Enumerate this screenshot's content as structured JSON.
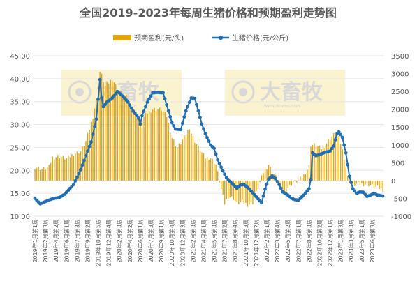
{
  "chart_data": {
    "type": "bar+line",
    "title": "全国2019-2023年每周生猪价格和预期盈利走势图",
    "legend": {
      "placement": "top-center",
      "bar_label": "预期盈利(元/头)",
      "line_label": "生猪价格(元/公斤)"
    },
    "colors": {
      "bar": "#e5a50f",
      "line": "#1f6fb5",
      "marker": "#1f6fb5",
      "grid": "#e6e6e6",
      "watermark_bg": "#fbf2d0"
    },
    "watermark": {
      "brand": "大畜牧",
      "url": "www.dxumu.com",
      "count": 2
    },
    "left_axis": {
      "label": "生猪价格",
      "min": 10,
      "max": 45,
      "step": 5,
      "ticks": [
        "10.00",
        "15.00",
        "20.00",
        "25.00",
        "30.00",
        "35.00",
        "40.00",
        "45.00"
      ]
    },
    "right_axis": {
      "label": "预期盈利",
      "min": -1000,
      "max": 3500,
      "step": 500,
      "ticks": [
        "-1000",
        "-500",
        "0",
        "500",
        "1000",
        "1500",
        "2000",
        "2500",
        "3000",
        "3500"
      ]
    },
    "x_tick_labels": [
      "2019年1月第1周",
      "2019年2月第3周",
      "2019年4月第2周",
      "2019年6月第1周",
      "2019年7月第3周",
      "2019年9月第2周",
      "2019年10月第5周",
      "2019年12月第4周",
      "2020年2月第3周",
      "2020年4月第2周",
      "2020年6月第1周",
      "2020年7月第3周",
      "2020年9月第1周",
      "2020年10月第4周",
      "2020年12月第3周",
      "2021年2月第3周",
      "2021年4月第1周",
      "2021年5月第3周",
      "2021年7月第2周",
      "2021年8月第4周",
      "2021年10月第3周",
      "2021年12月第2周",
      "2022年2月第1周",
      "2022年3月第4周",
      "2022年5月第2周",
      "2022年7月第1周",
      "2022年8月第3周",
      "2022年10月第2周",
      "2022年12月第1周",
      "2023年1月第3周",
      "2023年3月第3周",
      "2023年5月第1周",
      "2023年6月第3周"
    ],
    "price_keypoints": [
      [
        0,
        13.9
      ],
      [
        3,
        12.7
      ],
      [
        6,
        13.2
      ],
      [
        10,
        13.8
      ],
      [
        14,
        14.1
      ],
      [
        17,
        14.8
      ],
      [
        22,
        16.9
      ],
      [
        26,
        20.1
      ],
      [
        29,
        23.2
      ],
      [
        32,
        26.2
      ],
      [
        35,
        31.2
      ],
      [
        37,
        39.8
      ],
      [
        38,
        35.8
      ],
      [
        39,
        33.9
      ],
      [
        41,
        34.9
      ],
      [
        44,
        35.8
      ],
      [
        47,
        37.2
      ],
      [
        50,
        36.2
      ],
      [
        53,
        34.9
      ],
      [
        56,
        32.9
      ],
      [
        59,
        31.4
      ],
      [
        60,
        30.1
      ],
      [
        61,
        31.9
      ],
      [
        64,
        34.9
      ],
      [
        67,
        36.9
      ],
      [
        70,
        37.0
      ],
      [
        73,
        36.9
      ],
      [
        76,
        33.0
      ],
      [
        78,
        30.4
      ],
      [
        80,
        29.0
      ],
      [
        83,
        28.9
      ],
      [
        86,
        33.0
      ],
      [
        89,
        35.8
      ],
      [
        91,
        35.7
      ],
      [
        93,
        33.0
      ],
      [
        95,
        30.1
      ],
      [
        97,
        28.0
      ],
      [
        100,
        25.5
      ],
      [
        102,
        24.8
      ],
      [
        104,
        22.3
      ],
      [
        107,
        19.9
      ],
      [
        109,
        18.4
      ],
      [
        112,
        17.2
      ],
      [
        115,
        16.1
      ],
      [
        117,
        16.8
      ],
      [
        119,
        16.9
      ],
      [
        121,
        16.3
      ],
      [
        124,
        15.1
      ],
      [
        127,
        13.8
      ],
      [
        129,
        12.9
      ],
      [
        131,
        15.9
      ],
      [
        133,
        18.1
      ],
      [
        135,
        18.8
      ],
      [
        137,
        18.2
      ],
      [
        139,
        16.9
      ],
      [
        141,
        15.3
      ],
      [
        144,
        14.6
      ],
      [
        146,
        13.9
      ],
      [
        148,
        13.6
      ],
      [
        150,
        13.5
      ],
      [
        153,
        14.6
      ],
      [
        156,
        16.0
      ],
      [
        157,
        18.0
      ],
      [
        158,
        23.8
      ],
      [
        160,
        23.2
      ],
      [
        163,
        23.6
      ],
      [
        165,
        23.9
      ],
      [
        168,
        24.2
      ],
      [
        170,
        25.3
      ],
      [
        172,
        28.0
      ],
      [
        173,
        28.4
      ],
      [
        175,
        27.2
      ],
      [
        177,
        23.8
      ],
      [
        179,
        18.7
      ],
      [
        181,
        16.0
      ],
      [
        183,
        15.0
      ],
      [
        185,
        15.3
      ],
      [
        187,
        15.2
      ],
      [
        189,
        14.3
      ],
      [
        191,
        14.6
      ],
      [
        193,
        15.0
      ],
      [
        195,
        14.6
      ],
      [
        198,
        14.4
      ]
    ],
    "profit_keypoints": [
      [
        0,
        380
      ],
      [
        5,
        320
      ],
      [
        8,
        380
      ],
      [
        10,
        650
      ],
      [
        14,
        680
      ],
      [
        18,
        610
      ],
      [
        22,
        750
      ],
      [
        26,
        820
      ],
      [
        29,
        1100
      ],
      [
        33,
        1800
      ],
      [
        36,
        2500
      ],
      [
        37,
        3050
      ],
      [
        38,
        2950
      ],
      [
        40,
        2650
      ],
      [
        44,
        2850
      ],
      [
        48,
        2500
      ],
      [
        52,
        2350
      ],
      [
        56,
        1950
      ],
      [
        60,
        1650
      ],
      [
        64,
        1900
      ],
      [
        67,
        2000
      ],
      [
        72,
        2000
      ],
      [
        75,
        1800
      ],
      [
        78,
        1200
      ],
      [
        81,
        930
      ],
      [
        83,
        1050
      ],
      [
        86,
        1300
      ],
      [
        88,
        1500
      ],
      [
        89,
        1330
      ],
      [
        91,
        1100
      ],
      [
        94,
        850
      ],
      [
        97,
        640
      ],
      [
        100,
        640
      ],
      [
        103,
        450
      ],
      [
        106,
        -250
      ],
      [
        108,
        -650
      ],
      [
        110,
        -450
      ],
      [
        113,
        -500
      ],
      [
        115,
        -650
      ],
      [
        118,
        -600
      ],
      [
        121,
        -680
      ],
      [
        124,
        -620
      ],
      [
        127,
        -200
      ],
      [
        130,
        230
      ],
      [
        133,
        450
      ],
      [
        135,
        250
      ],
      [
        137,
        110
      ],
      [
        140,
        -250
      ],
      [
        142,
        -350
      ],
      [
        144,
        -200
      ],
      [
        147,
        -50
      ],
      [
        150,
        0
      ],
      [
        153,
        150
      ],
      [
        156,
        400
      ],
      [
        157,
        1000
      ],
      [
        159,
        1000
      ],
      [
        163,
        900
      ],
      [
        165,
        980
      ],
      [
        168,
        1180
      ],
      [
        170,
        1280
      ],
      [
        172,
        1360
      ],
      [
        174,
        1050
      ],
      [
        176,
        650
      ],
      [
        178,
        100
      ],
      [
        180,
        -150
      ],
      [
        183,
        -100
      ],
      [
        186,
        -100
      ],
      [
        189,
        -100
      ],
      [
        192,
        -150
      ],
      [
        195,
        -200
      ],
      [
        198,
        -250
      ]
    ],
    "n_weeks": 199,
    "x_tick_step": 6
  }
}
